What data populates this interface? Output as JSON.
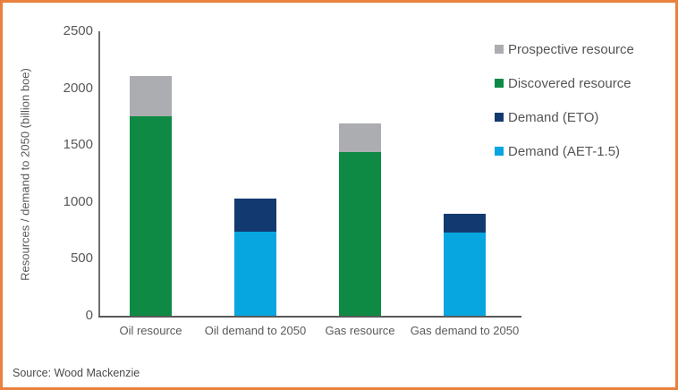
{
  "frame": {
    "border_color": "#E8813E",
    "background_color": "#FFFFFF"
  },
  "source": {
    "text": "Source: Wood Mackenzie"
  },
  "colors": {
    "axis_line": "#595959",
    "text": "#595959"
  },
  "chart_data": {
    "type": "bar",
    "stacked": true,
    "title": "",
    "categories": [
      "Oil resource",
      "Oil demand to 2050",
      "Gas resource",
      "Gas demand to 2050"
    ],
    "series": [
      {
        "name": "Prospective resource",
        "color": "#ACADB0",
        "values": [
          360,
          0,
          250,
          0
        ]
      },
      {
        "name": "Discovered resource",
        "color": "#0E8A44",
        "values": [
          1750,
          0,
          1440,
          0
        ]
      },
      {
        "name": "Demand (ETO)",
        "color": "#133A70",
        "values": [
          0,
          290,
          0,
          170
        ]
      },
      {
        "name": "Demand (AET-1.5)",
        "color": "#07A6E0",
        "values": [
          0,
          740,
          0,
          730
        ]
      }
    ],
    "stack_order": [
      "Discovered resource",
      "Demand (AET-1.5)",
      "Demand (ETO)",
      "Prospective resource"
    ],
    "bar_totals": [
      2110,
      1030,
      1690,
      900
    ],
    "xlabel": "",
    "ylabel": "Resources / demand to 2050 (billion boe)",
    "ylim": [
      0,
      2500
    ],
    "yticks": [
      0,
      500,
      1000,
      1500,
      2000,
      2500
    ],
    "grid": false,
    "legend_position": "top-right"
  }
}
